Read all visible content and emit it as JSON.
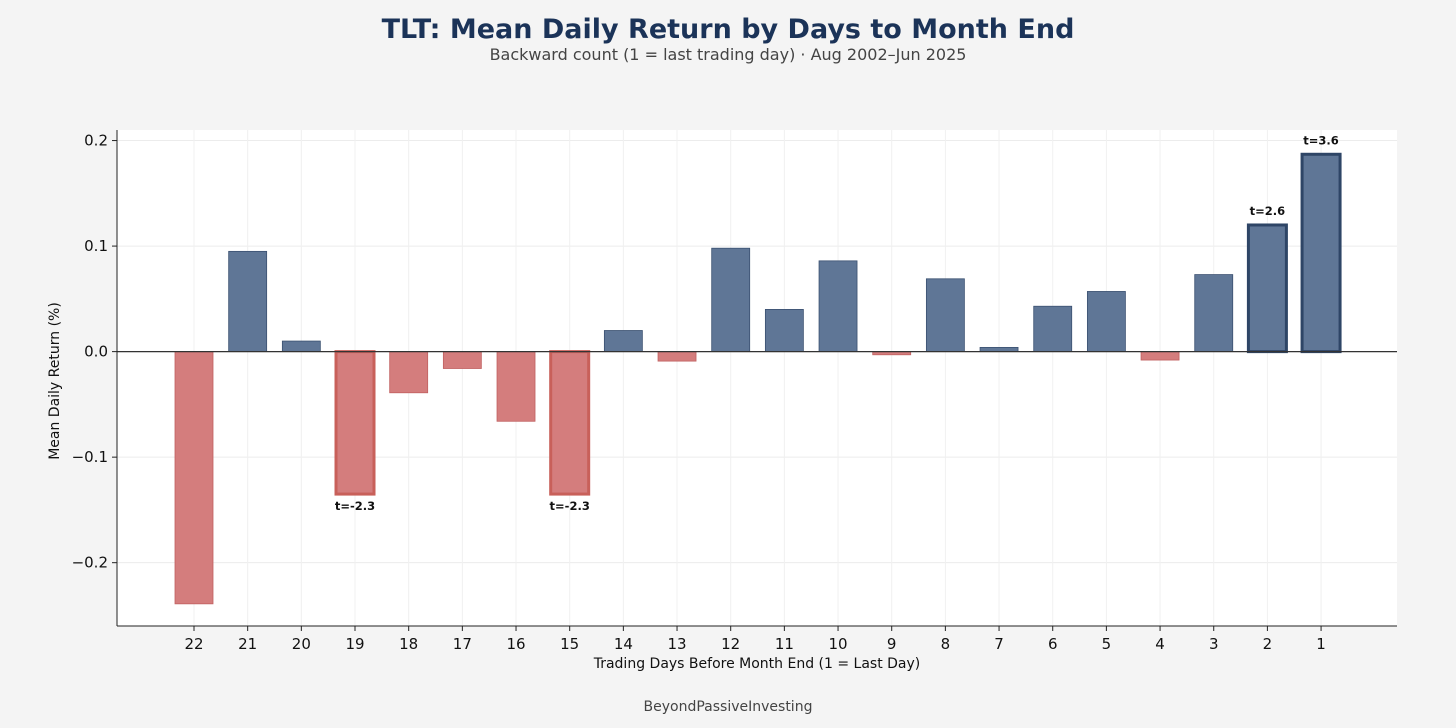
{
  "title": "TLT: Mean Daily Return by Days to Month End",
  "subtitle": "Backward count (1 = last trading day)  ·  Aug 2002–Jun 2025",
  "credit": "BeyondPassiveInvesting",
  "colors": {
    "positive": "#5f7696",
    "positive_edge": "#3a5070",
    "negative": "#d47d7d",
    "negative_edge": "#c06060",
    "significant_positive_edge": "#2e4566",
    "significant_negative_edge": "#c8605a",
    "plot_bg": "#ffffff",
    "page_bg": "#f4f4f4"
  },
  "chart_data": {
    "type": "bar",
    "title": "TLT: Mean Daily Return by Days to Month End",
    "subtitle": "Backward count (1 = last trading day)  ·  Aug 2002–Jun 2025",
    "xlabel": "Trading Days Before Month End (1 = Last Day)",
    "ylabel": "Mean Daily Return (%)",
    "ylim": [
      -0.26,
      0.21
    ],
    "yticks": [
      -0.2,
      -0.1,
      0.0,
      0.1,
      0.2
    ],
    "ytick_labels": [
      "−0.2",
      "−0.1",
      "0.0",
      "0.1",
      "0.2"
    ],
    "grid": true,
    "categories": [
      "22",
      "21",
      "20",
      "19",
      "18",
      "17",
      "16",
      "15",
      "14",
      "13",
      "12",
      "11",
      "10",
      "9",
      "8",
      "7",
      "6",
      "5",
      "4",
      "3",
      "2",
      "1"
    ],
    "values": [
      -0.239,
      0.095,
      0.01,
      -0.135,
      -0.039,
      -0.016,
      -0.066,
      -0.135,
      0.02,
      -0.009,
      0.098,
      0.04,
      0.086,
      -0.003,
      0.069,
      0.004,
      0.043,
      0.057,
      -0.008,
      0.073,
      0.12,
      0.187
    ],
    "annotations": [
      {
        "category": "19",
        "text": "t=-2.3"
      },
      {
        "category": "15",
        "text": "t=-2.3"
      },
      {
        "category": "2",
        "text": "t=2.6"
      },
      {
        "category": "1",
        "text": "t=3.6"
      }
    ]
  }
}
